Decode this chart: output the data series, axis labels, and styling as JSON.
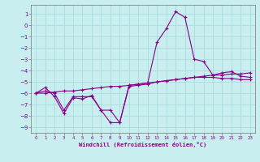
{
  "xlabel": "Windchill (Refroidissement éolien,°C)",
  "background_color": "#c8eef0",
  "grid_color": "#aadddd",
  "line_color": "#880088",
  "xlim": [
    -0.5,
    23.5
  ],
  "ylim": [
    -9.5,
    1.8
  ],
  "yticks": [
    1,
    0,
    -1,
    -2,
    -3,
    -4,
    -5,
    -6,
    -7,
    -8,
    -9
  ],
  "xticks": [
    0,
    1,
    2,
    3,
    4,
    5,
    6,
    7,
    8,
    9,
    10,
    11,
    12,
    13,
    14,
    15,
    16,
    17,
    18,
    19,
    20,
    21,
    22,
    23
  ],
  "line1_x": [
    0,
    1,
    2,
    3,
    4,
    5,
    6,
    7,
    8,
    9,
    10,
    11,
    12,
    13,
    14,
    15,
    16,
    17,
    18,
    19,
    20,
    21,
    22,
    23
  ],
  "line1_y": [
    -6.0,
    -5.5,
    -6.3,
    -7.8,
    -6.4,
    -6.5,
    -6.2,
    -7.5,
    -7.5,
    -8.6,
    -5.4,
    -5.3,
    -5.2,
    -5.0,
    -4.9,
    -4.8,
    -4.7,
    -4.6,
    -4.6,
    -4.6,
    -4.7,
    -4.7,
    -4.8,
    -4.8
  ],
  "line2_x": [
    0,
    1,
    2,
    3,
    4,
    5,
    6,
    7,
    8,
    9,
    10,
    11,
    12,
    13,
    14,
    15,
    16,
    17,
    18,
    19,
    20,
    21,
    22,
    23
  ],
  "line2_y": [
    -6.0,
    -5.8,
    -6.0,
    -7.5,
    -6.3,
    -6.3,
    -6.3,
    -7.5,
    -8.6,
    -8.6,
    -5.3,
    -5.2,
    -5.1,
    -1.5,
    -0.3,
    1.2,
    0.7,
    -3.0,
    -3.2,
    -4.4,
    -4.2,
    -4.1,
    -4.5,
    -4.6
  ],
  "line3_x": [
    0,
    1,
    2,
    3,
    4,
    5,
    6,
    7,
    8,
    9,
    10,
    11,
    12,
    13,
    14,
    15,
    16,
    17,
    18,
    19,
    20,
    21,
    22,
    23
  ],
  "line3_y": [
    -6.0,
    -6.0,
    -5.9,
    -5.8,
    -5.8,
    -5.7,
    -5.6,
    -5.5,
    -5.4,
    -5.4,
    -5.3,
    -5.2,
    -5.1,
    -5.0,
    -4.9,
    -4.8,
    -4.7,
    -4.6,
    -4.5,
    -4.4,
    -4.4,
    -4.3,
    -4.3,
    -4.2
  ]
}
